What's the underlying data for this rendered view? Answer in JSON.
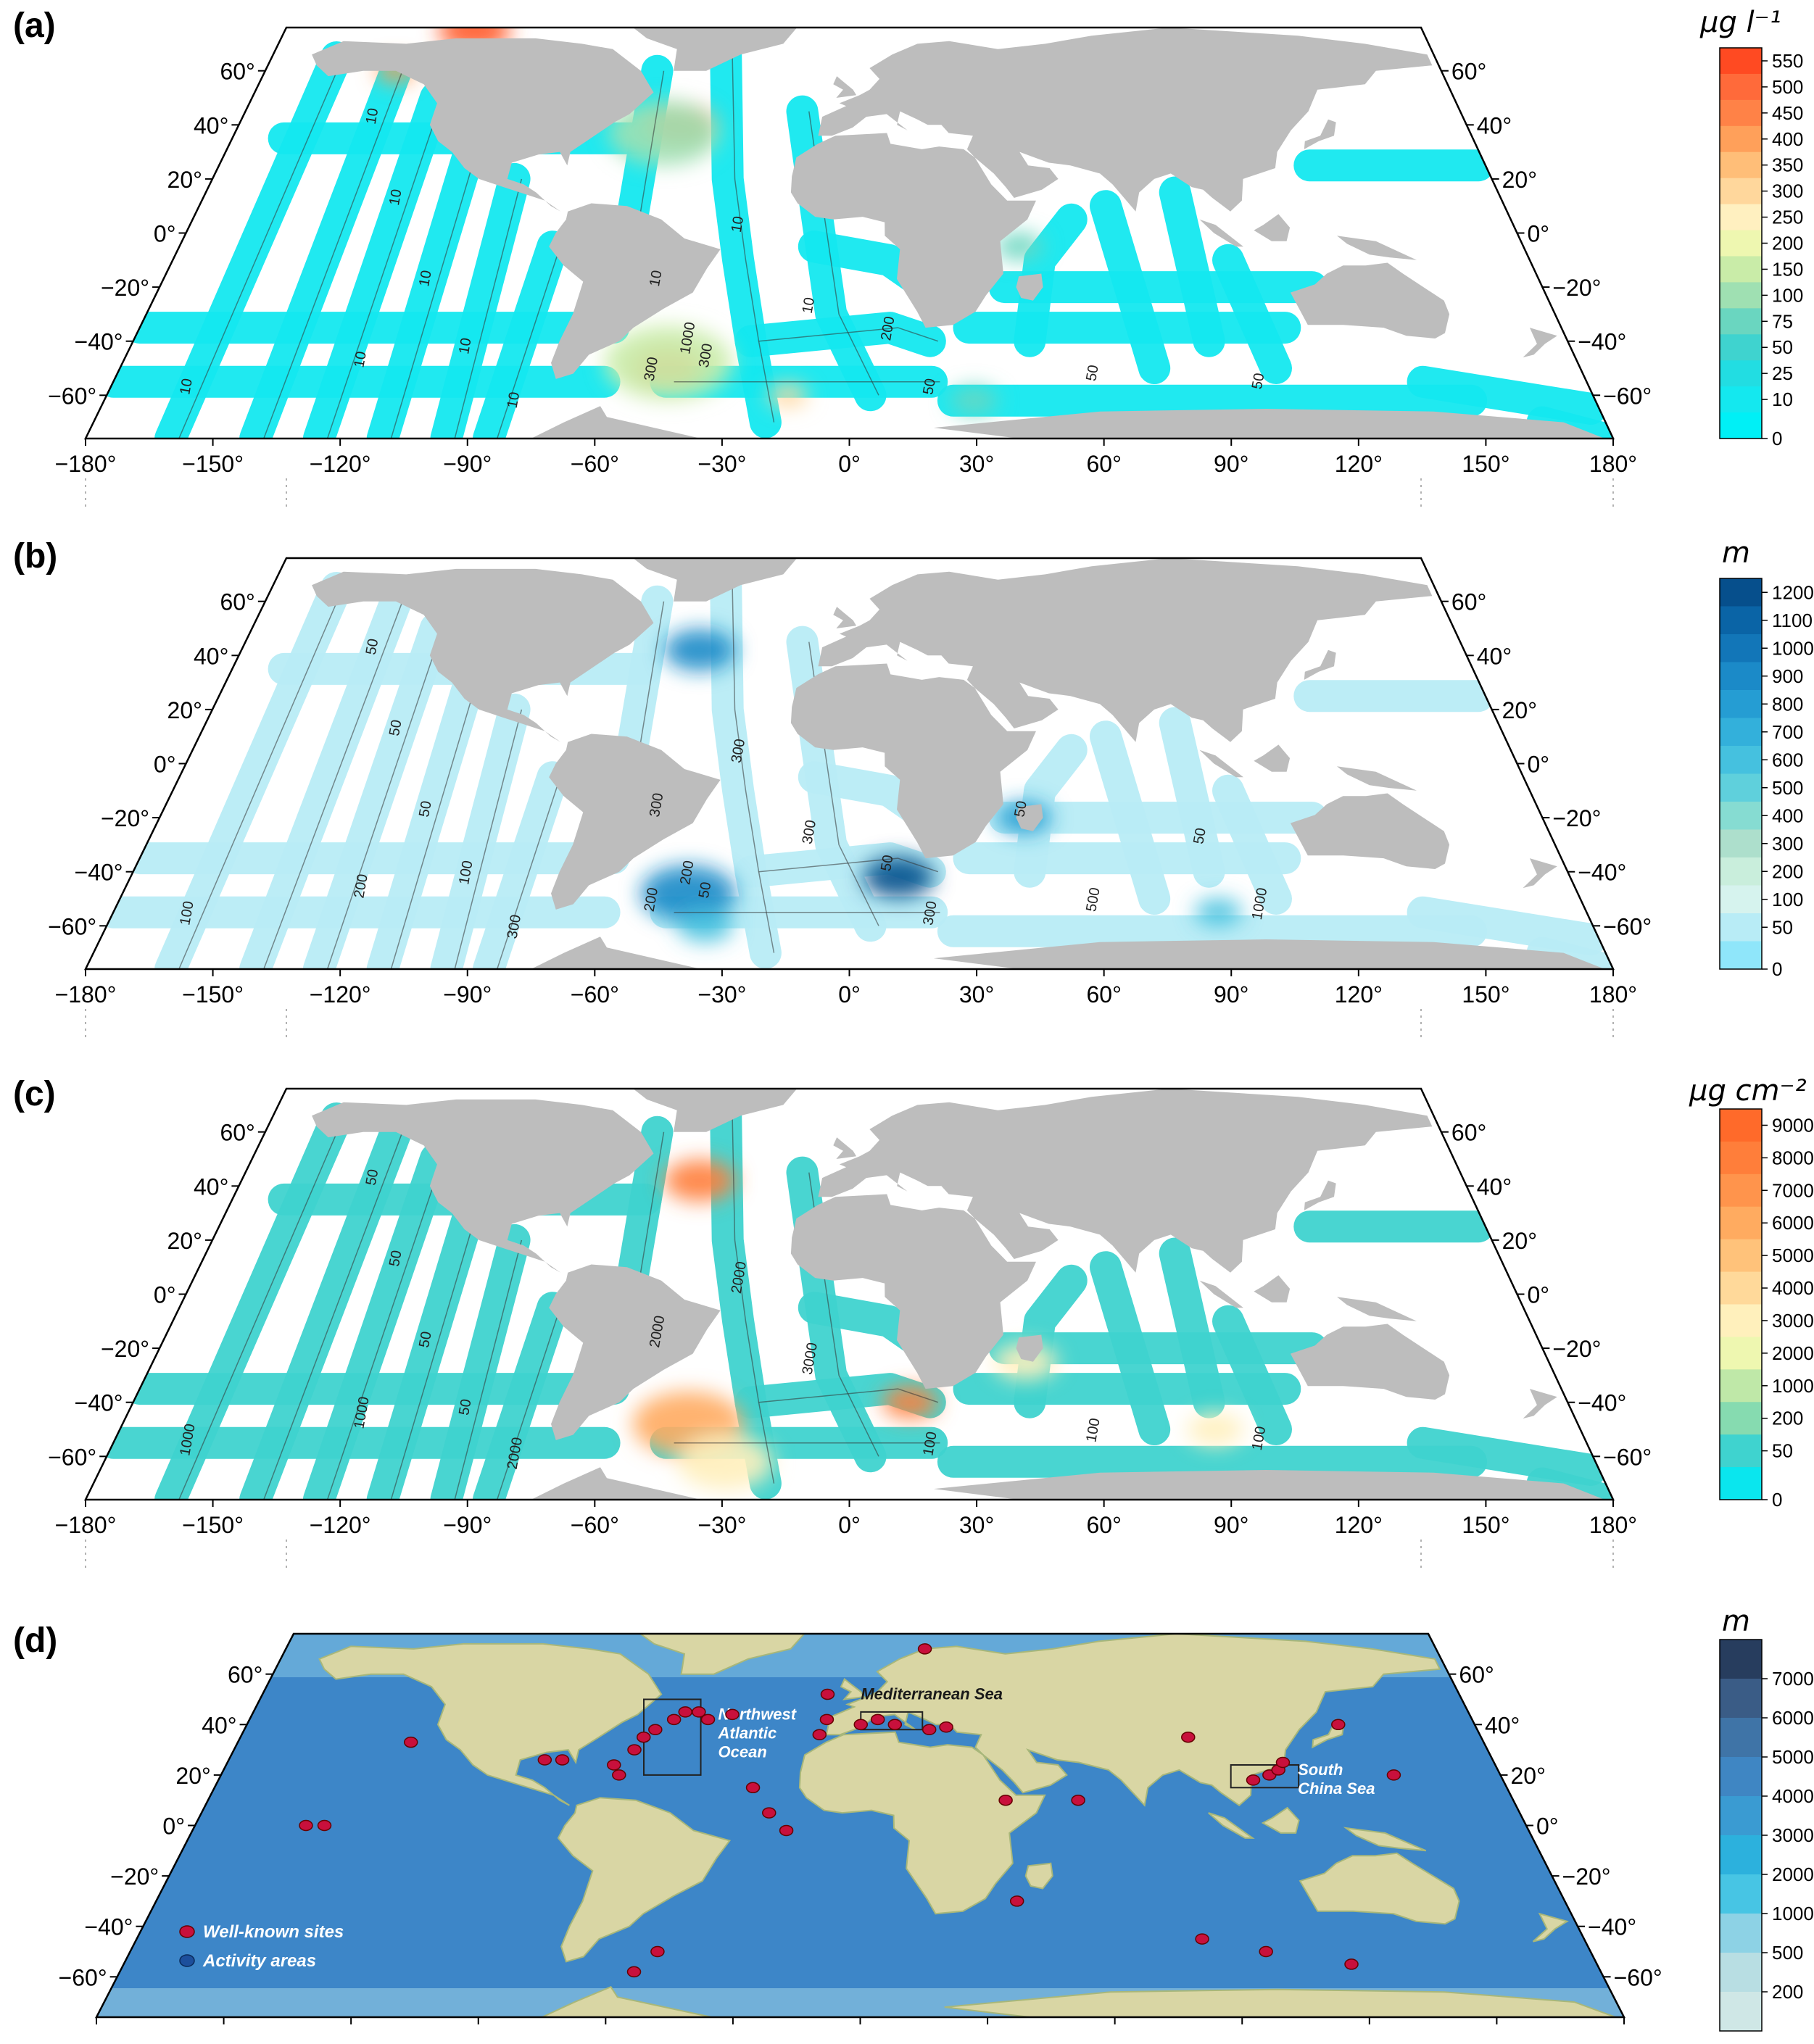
{
  "panels": [
    {
      "id": "a",
      "label": "(a)",
      "colorbar_unit": "μg l⁻¹",
      "colorbar_ticks": [
        "550",
        "500",
        "450",
        "400",
        "350",
        "300",
        "250",
        "200",
        "150",
        "100",
        "75",
        "50",
        "25",
        "10",
        "0"
      ],
      "colorbar_colors": [
        "#ff4a22",
        "#ff6a3a",
        "#ff8247",
        "#ffa05a",
        "#ffbe78",
        "#ffd79c",
        "#fff0c0",
        "#eef7b0",
        "#c9eca8",
        "#9fe0b2",
        "#6ad6c0",
        "#3fd3cf",
        "#22dde2",
        "#14e8ef",
        "#00f0f6"
      ],
      "contour_labels": [
        "10",
        "10",
        "10",
        "10",
        "10",
        "10",
        "10",
        "10",
        "10",
        "10",
        "50",
        "50",
        "50",
        "1000",
        "300",
        "300",
        "200"
      ],
      "hotspots": [
        {
          "lon": -120,
          "lat": 75,
          "r": 9,
          "color": "#ff5a2a"
        },
        {
          "lon": -140,
          "lat": 60,
          "r": 5,
          "color": "#ff9a50"
        },
        {
          "lon": -50,
          "lat": 40,
          "r": 9,
          "color": "#ff7040"
        },
        {
          "lon": -55,
          "lat": 37,
          "r": 14,
          "color": "#9fe0b2"
        },
        {
          "lon": -45,
          "lat": -50,
          "r": 9,
          "color": "#ff6a3a"
        },
        {
          "lon": -45,
          "lat": -48,
          "r": 16,
          "color": "#c9eca8"
        },
        {
          "lon": -15,
          "lat": -60,
          "r": 5,
          "color": "#ffd79c"
        },
        {
          "lon": 30,
          "lat": -62,
          "r": 6,
          "color": "#6ad6c0"
        },
        {
          "lon": 45,
          "lat": -5,
          "r": 6,
          "color": "#6ad6c0"
        }
      ]
    },
    {
      "id": "b",
      "label": "(b)",
      "colorbar_unit": "m",
      "colorbar_ticks": [
        "1200",
        "1100",
        "1000",
        "900",
        "800",
        "700",
        "600",
        "500",
        "400",
        "300",
        "200",
        "100",
        "50",
        "0"
      ],
      "colorbar_colors": [
        "#064f8c",
        "#0a64a6",
        "#1276b8",
        "#1b8ac8",
        "#259dd3",
        "#33b0db",
        "#45c1df",
        "#5fd0dc",
        "#86dcd2",
        "#addfcc",
        "#c9eedc",
        "#d6f3ee",
        "#b8ecf6",
        "#8fe6fa"
      ],
      "contour_labels": [
        "50",
        "50",
        "50",
        "100",
        "100",
        "200",
        "300",
        "300",
        "300",
        "300",
        "300",
        "500",
        "1000",
        "200",
        "200",
        "50",
        "50",
        "50",
        "50"
      ],
      "hotspots": [
        {
          "lon": -45,
          "lat": 42,
          "r": 9,
          "color": "#1b8ac8"
        },
        {
          "lon": -40,
          "lat": -48,
          "r": 12,
          "color": "#1b8ac8"
        },
        {
          "lon": 12,
          "lat": -42,
          "r": 9,
          "color": "#064f8c"
        },
        {
          "lon": 45,
          "lat": -20,
          "r": 7,
          "color": "#259dd3"
        },
        {
          "lon": -35,
          "lat": -60,
          "r": 7,
          "color": "#45c1df"
        },
        {
          "lon": 90,
          "lat": -55,
          "r": 6,
          "color": "#45c1df"
        }
      ]
    },
    {
      "id": "c",
      "label": "(c)",
      "colorbar_unit": "μg cm⁻²",
      "colorbar_ticks": [
        "9000",
        "8000",
        "7000",
        "6000",
        "5000",
        "4000",
        "3000",
        "2000",
        "1000",
        "200",
        "50",
        "0"
      ],
      "colorbar_colors": [
        "#ff6a2a",
        "#ff7e3a",
        "#ff944c",
        "#ffab60",
        "#ffc27a",
        "#ffd99a",
        "#fff0bc",
        "#eef7b0",
        "#bfe8a8",
        "#86dbb0",
        "#3fd3cf",
        "#0ae6ee"
      ],
      "contour_labels": [
        "50",
        "50",
        "50",
        "50",
        "1000",
        "1000",
        "2000",
        "2000",
        "2000",
        "3000",
        "100",
        "100",
        "100"
      ],
      "hotspots": [
        {
          "lon": -45,
          "lat": 42,
          "r": 9,
          "color": "#ff7e3a"
        },
        {
          "lon": -40,
          "lat": -48,
          "r": 14,
          "color": "#ffab60"
        },
        {
          "lon": 15,
          "lat": -40,
          "r": 7,
          "color": "#ff7e3a"
        },
        {
          "lon": -30,
          "lat": -62,
          "r": 12,
          "color": "#fff0bc"
        },
        {
          "lon": 45,
          "lat": -25,
          "r": 8,
          "color": "#fff0bc"
        },
        {
          "lon": 90,
          "lat": -50,
          "r": 7,
          "color": "#fff0bc"
        }
      ]
    },
    {
      "id": "d",
      "label": "(d)",
      "colorbar_unit": "m",
      "colorbar_ticks": [
        "7000",
        "6000",
        "5000",
        "4000",
        "3000",
        "2000",
        "1000",
        "500",
        "200"
      ],
      "colorbar_colors": [
        "#273d5e",
        "#3a5c86",
        "#3f74a7",
        "#3f86c3",
        "#3a9bd2",
        "#2cb1dd",
        "#47c5e4",
        "#8dd2e5",
        "#b8dee3",
        "#cfe7e6"
      ],
      "region_labels": {
        "nw_atlantic": "Northwest Atlantic Ocean",
        "mediterranean": "Mediterranean Sea",
        "south_china_sea": "South China Sea"
      },
      "legend": {
        "well_known": "Well-known sites",
        "activity": "Activity areas"
      },
      "sites": [
        {
          "lon": -130,
          "lat": 33
        },
        {
          "lon": -90,
          "lat": 26
        },
        {
          "lon": -85,
          "lat": 26
        },
        {
          "lon": -70,
          "lat": 24
        },
        {
          "lon": -65,
          "lat": 30
        },
        {
          "lon": -63,
          "lat": 35
        },
        {
          "lon": -60,
          "lat": 38
        },
        {
          "lon": -55,
          "lat": 42
        },
        {
          "lon": -52,
          "lat": 45
        },
        {
          "lon": -48,
          "lat": 45
        },
        {
          "lon": -45,
          "lat": 42
        },
        {
          "lon": -38,
          "lat": 44
        },
        {
          "lon": -68,
          "lat": 20
        },
        {
          "lon": -30,
          "lat": 15
        },
        {
          "lon": -25,
          "lat": 5
        },
        {
          "lon": -20,
          "lat": -2
        },
        {
          "lon": -10,
          "lat": 52
        },
        {
          "lon": -10,
          "lat": 42
        },
        {
          "lon": -12,
          "lat": 36
        },
        {
          "lon": 0,
          "lat": 40
        },
        {
          "lon": 5,
          "lat": 42
        },
        {
          "lon": 10,
          "lat": 40
        },
        {
          "lon": 20,
          "lat": 38
        },
        {
          "lon": 25,
          "lat": 39
        },
        {
          "lon": 20,
          "lat": 70
        },
        {
          "lon": -150,
          "lat": 0
        },
        {
          "lon": -145,
          "lat": 0
        },
        {
          "lon": 40,
          "lat": 10
        },
        {
          "lon": 60,
          "lat": 10
        },
        {
          "lon": 95,
          "lat": 35
        },
        {
          "lon": 110,
          "lat": 18
        },
        {
          "lon": 115,
          "lat": 20
        },
        {
          "lon": 118,
          "lat": 22
        },
        {
          "lon": 120,
          "lat": 25
        },
        {
          "lon": 140,
          "lat": 40
        },
        {
          "lon": 150,
          "lat": 20
        },
        {
          "lon": 40,
          "lat": -30
        },
        {
          "lon": 85,
          "lat": -45
        },
        {
          "lon": 100,
          "lat": -50
        },
        {
          "lon": 120,
          "lat": -55
        },
        {
          "lon": -50,
          "lat": -50
        },
        {
          "lon": -55,
          "lat": -58
        }
      ]
    }
  ],
  "axes": {
    "lon_ticks": [
      "−180°",
      "−150°",
      "−120°",
      "−90°",
      "−60°",
      "−30°",
      "0°",
      "30°",
      "60°",
      "90°",
      "120°",
      "150°",
      "180°"
    ],
    "lat_ticks": [
      "60°",
      "40°",
      "20°",
      "0°",
      "−20°",
      "−40°",
      "−60°"
    ]
  }
}
